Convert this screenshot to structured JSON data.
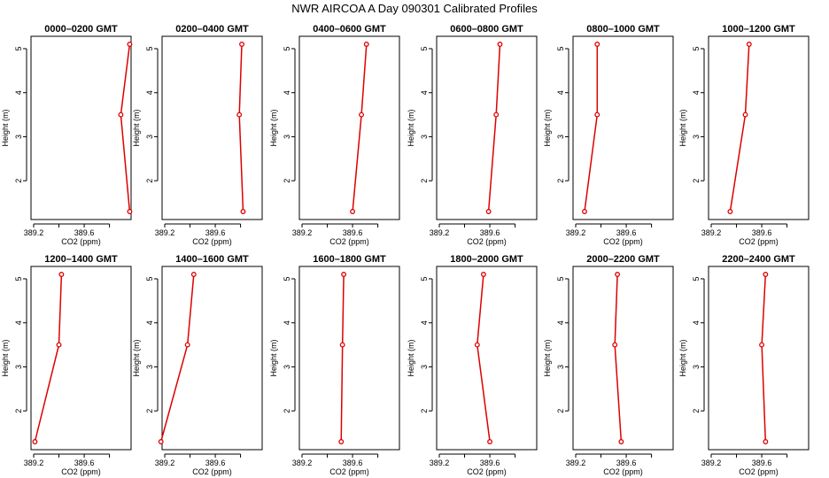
{
  "figure": {
    "title": "NWR AIRCOA A  Day 090301  Calibrated Profiles"
  },
  "colors": {
    "series": "#dd0000",
    "axis": "#000000"
  },
  "chart_data": [
    {
      "type": "line",
      "title": "0000–0200 GMT",
      "xlabel": "CO2 (ppm)",
      "ylabel": "Height (m)",
      "xlim": [
        389.2,
        389.95
      ],
      "ylim": [
        1.3,
        5.1
      ],
      "xticks": [
        "389.2",
        "389.6"
      ],
      "yticks": [
        "2",
        "3",
        "4",
        "5"
      ],
      "x": [
        389.96,
        389.89,
        389.96
      ],
      "y": [
        1.3,
        3.5,
        5.1
      ]
    },
    {
      "type": "line",
      "title": "0200–0400 GMT",
      "xlabel": "CO2 (ppm)",
      "ylabel": "Height (m)",
      "xlim": [
        389.2,
        389.95
      ],
      "ylim": [
        1.3,
        5.1
      ],
      "xticks": [
        "389.2",
        "389.6"
      ],
      "yticks": [
        "2",
        "3",
        "4",
        "5"
      ],
      "x": [
        389.82,
        389.79,
        389.81
      ],
      "y": [
        1.3,
        3.5,
        5.1
      ]
    },
    {
      "type": "line",
      "title": "0400–0600 GMT",
      "xlabel": "CO2 (ppm)",
      "ylabel": "Height (m)",
      "xlim": [
        389.2,
        389.95
      ],
      "ylim": [
        1.3,
        5.1
      ],
      "xticks": [
        "389.2",
        "389.6"
      ],
      "yticks": [
        "2",
        "3",
        "4",
        "5"
      ],
      "x": [
        389.6,
        389.67,
        389.71
      ],
      "y": [
        1.3,
        3.5,
        5.1
      ]
    },
    {
      "type": "line",
      "title": "0600–0800 GMT",
      "xlabel": "CO2 (ppm)",
      "ylabel": "Height (m)",
      "xlim": [
        389.2,
        389.95
      ],
      "ylim": [
        1.3,
        5.1
      ],
      "xticks": [
        "389.2",
        "389.6"
      ],
      "yticks": [
        "2",
        "3",
        "4",
        "5"
      ],
      "x": [
        389.59,
        389.65,
        389.68
      ],
      "y": [
        1.3,
        3.5,
        5.1
      ]
    },
    {
      "type": "line",
      "title": "0800–1000 GMT",
      "xlabel": "CO2 (ppm)",
      "ylabel": "Height (m)",
      "xlim": [
        389.2,
        389.95
      ],
      "ylim": [
        1.3,
        5.1
      ],
      "xticks": [
        "389.2",
        "389.6"
      ],
      "yticks": [
        "2",
        "3",
        "4",
        "5"
      ],
      "x": [
        389.27,
        389.37,
        389.37
      ],
      "y": [
        1.3,
        3.5,
        5.1
      ]
    },
    {
      "type": "line",
      "title": "1000–1200 GMT",
      "xlabel": "CO2 (ppm)",
      "ylabel": "Height (m)",
      "xlim": [
        389.2,
        389.95
      ],
      "ylim": [
        1.3,
        5.1
      ],
      "xticks": [
        "389.2",
        "389.6"
      ],
      "yticks": [
        "2",
        "3",
        "4",
        "5"
      ],
      "x": [
        389.35,
        389.47,
        389.5
      ],
      "y": [
        1.3,
        3.5,
        5.1
      ]
    },
    {
      "type": "line",
      "title": "1200–1400 GMT",
      "xlabel": "CO2 (ppm)",
      "ylabel": "Height (m)",
      "xlim": [
        389.2,
        389.95
      ],
      "ylim": [
        1.3,
        5.1
      ],
      "xticks": [
        "389.2",
        "389.6"
      ],
      "yticks": [
        "2",
        "3",
        "4",
        "5"
      ],
      "x": [
        389.21,
        389.4,
        389.42
      ],
      "y": [
        1.3,
        3.5,
        5.1
      ]
    },
    {
      "type": "line",
      "title": "1400–1600 GMT",
      "xlabel": "CO2 (ppm)",
      "ylabel": "Height (m)",
      "xlim": [
        389.2,
        389.95
      ],
      "ylim": [
        1.3,
        5.1
      ],
      "xticks": [
        "389.2",
        "389.6"
      ],
      "yticks": [
        "2",
        "3",
        "4",
        "5"
      ],
      "x": [
        389.17,
        389.38,
        389.43
      ],
      "y": [
        1.3,
        3.5,
        5.1
      ]
    },
    {
      "type": "line",
      "title": "1600–1800 GMT",
      "xlabel": "CO2 (ppm)",
      "ylabel": "Height (m)",
      "xlim": [
        389.2,
        389.95
      ],
      "ylim": [
        1.3,
        5.1
      ],
      "xticks": [
        "389.2",
        "389.6"
      ],
      "yticks": [
        "2",
        "3",
        "4",
        "5"
      ],
      "x": [
        389.51,
        389.52,
        389.53
      ],
      "y": [
        1.3,
        3.5,
        5.1
      ]
    },
    {
      "type": "line",
      "title": "1800–2000 GMT",
      "xlabel": "CO2 (ppm)",
      "ylabel": "Height (m)",
      "xlim": [
        389.2,
        389.95
      ],
      "ylim": [
        1.3,
        5.1
      ],
      "xticks": [
        "389.2",
        "389.6"
      ],
      "yticks": [
        "2",
        "3",
        "4",
        "5"
      ],
      "x": [
        389.6,
        389.5,
        389.55
      ],
      "y": [
        1.3,
        3.5,
        5.1
      ]
    },
    {
      "type": "line",
      "title": "2000–2200 GMT",
      "xlabel": "CO2 (ppm)",
      "ylabel": "Height (m)",
      "xlim": [
        389.2,
        389.95
      ],
      "ylim": [
        1.3,
        5.1
      ],
      "xticks": [
        "389.2",
        "389.6"
      ],
      "yticks": [
        "2",
        "3",
        "4",
        "5"
      ],
      "x": [
        389.56,
        389.51,
        389.53
      ],
      "y": [
        1.3,
        3.5,
        5.1
      ]
    },
    {
      "type": "line",
      "title": "2200–2400 GMT",
      "xlabel": "CO2 (ppm)",
      "ylabel": "Height (m)",
      "xlim": [
        389.2,
        389.95
      ],
      "ylim": [
        1.3,
        5.1
      ],
      "xticks": [
        "389.2",
        "389.6"
      ],
      "yticks": [
        "2",
        "3",
        "4",
        "5"
      ],
      "x": [
        389.63,
        389.6,
        389.63
      ],
      "y": [
        1.3,
        3.5,
        5.1
      ]
    }
  ]
}
